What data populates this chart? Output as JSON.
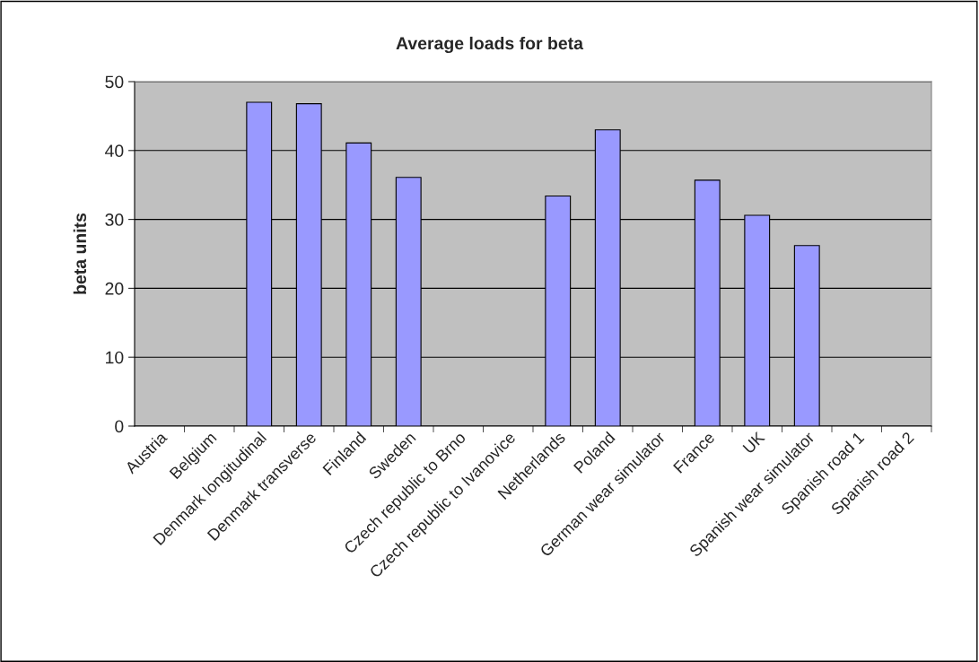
{
  "chart_data": {
    "type": "bar",
    "title": "Average loads for beta",
    "ylabel": "beta units",
    "categories": [
      "Austria",
      "Belgium",
      "Denmark longitudinal",
      "Denmark transverse",
      "Finland",
      "Sweden",
      "Czech republic to Brno",
      "Czech republic to Ivanovice",
      "Netherlands",
      "Poland",
      "German wear simulator",
      "France",
      "UK",
      "Spanish wear simulator",
      "Spanish road 1",
      "Spanish road 2"
    ],
    "values": [
      null,
      null,
      47.0,
      46.8,
      41.1,
      36.1,
      null,
      null,
      33.4,
      43.0,
      null,
      35.7,
      30.6,
      26.2,
      null,
      null
    ],
    "color": "#9999ff",
    "ylim": [
      0,
      50
    ],
    "yticks": [
      0,
      10,
      20,
      30,
      40,
      50
    ],
    "grid": "y"
  }
}
